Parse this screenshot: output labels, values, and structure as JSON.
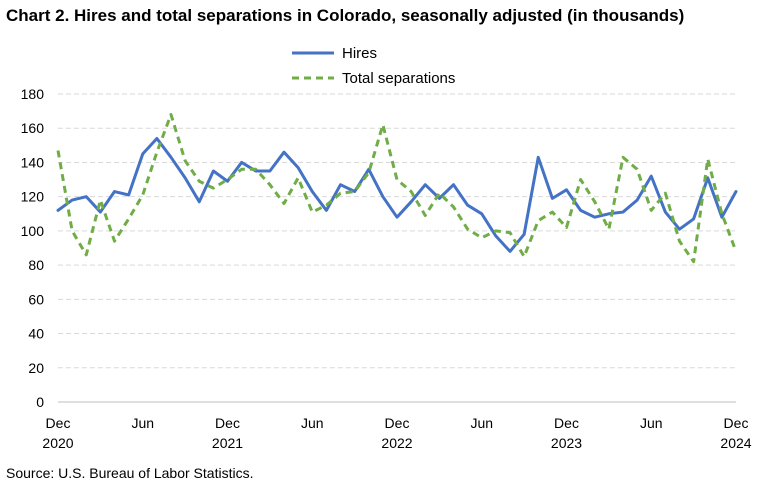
{
  "title": "Chart 2. Hires and total separations in Colorado, seasonally adjusted (in thousands)",
  "source": "Source: U.S. Bureau of Labor Statistics.",
  "chart_data": {
    "type": "line",
    "title": "Chart 2. Hires and total separations in Colorado, seasonally adjusted (in thousands)",
    "xlabel": "",
    "ylabel": "",
    "ylim": [
      0,
      180
    ],
    "yticks": [
      0,
      20,
      40,
      60,
      80,
      100,
      120,
      140,
      160,
      180
    ],
    "grid": true,
    "legend_position": "top-center",
    "x_start": "Dec 2020",
    "x_end": "Dec 2024",
    "x_ticks": [
      {
        "month": "Dec",
        "year": "2020"
      },
      {
        "month": "Jun",
        "year": ""
      },
      {
        "month": "Dec",
        "year": "2021"
      },
      {
        "month": "Jun",
        "year": ""
      },
      {
        "month": "Dec",
        "year": "2022"
      },
      {
        "month": "Jun",
        "year": ""
      },
      {
        "month": "Dec",
        "year": "2023"
      },
      {
        "month": "Jun",
        "year": ""
      },
      {
        "month": "Dec",
        "year": "2024"
      }
    ],
    "series": [
      {
        "name": "Hires",
        "color": "#4472C4",
        "style": "solid",
        "values": [
          112,
          118,
          120,
          111,
          123,
          121,
          145,
          154,
          143,
          131,
          117,
          135,
          129,
          140,
          135,
          135,
          146,
          137,
          123,
          112,
          127,
          123,
          136,
          120,
          108,
          117,
          127,
          119,
          127,
          115,
          110,
          97,
          88,
          98,
          143,
          119,
          124,
          112,
          108,
          110,
          111,
          118,
          132,
          111,
          101,
          107,
          131,
          108,
          123
        ]
      },
      {
        "name": "Total separations",
        "color": "#70AD47",
        "style": "dashed",
        "values": [
          147,
          100,
          86,
          118,
          94,
          107,
          121,
          146,
          168,
          141,
          129,
          125,
          130,
          136,
          136,
          127,
          116,
          131,
          111,
          115,
          122,
          123,
          134,
          162,
          130,
          123,
          109,
          122,
          114,
          101,
          96,
          100,
          99,
          85,
          106,
          111,
          102,
          130,
          117,
          101,
          143,
          136,
          112,
          122,
          94,
          82,
          142,
          110,
          88
        ]
      }
    ]
  }
}
